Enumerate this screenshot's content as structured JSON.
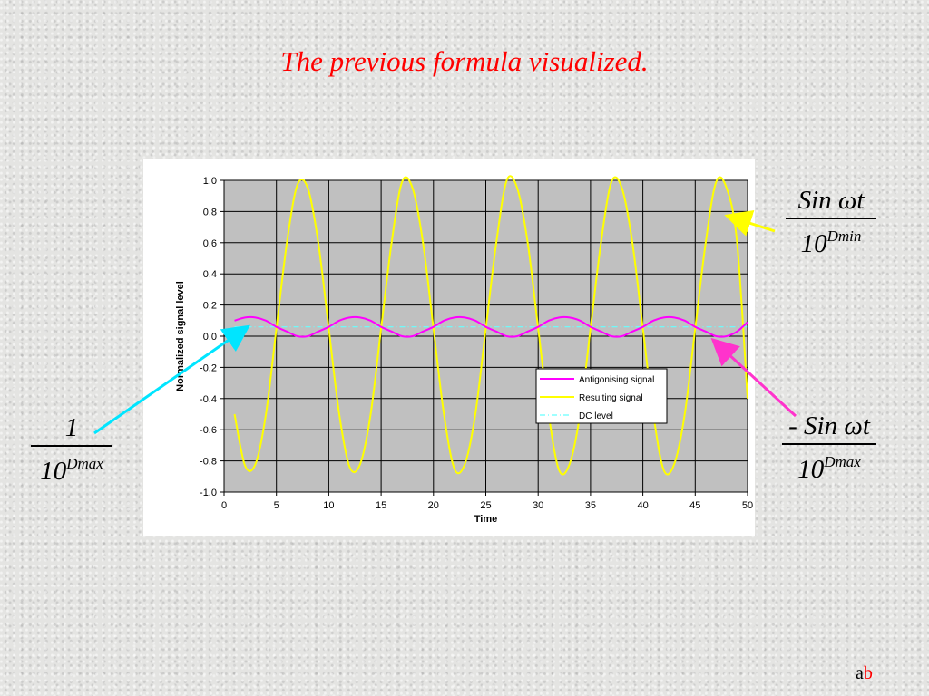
{
  "slide": {
    "title": "The previous formula visualized.",
    "footer_a": "a",
    "footer_b": "b"
  },
  "formulas": {
    "left": {
      "numerator": "1",
      "denominator_base": "10",
      "denominator_exp": "Dmax"
    },
    "top_right": {
      "numerator": "Sin ωt",
      "denominator_base": "10",
      "denominator_exp": "Dmin"
    },
    "bottom_right": {
      "numerator": "- Sin ωt",
      "denominator_base": "10",
      "denominator_exp": "Dmax"
    }
  },
  "colors": {
    "title": "#ff0000",
    "antigonising": "#ff00ff",
    "resulting": "#ffff00",
    "dc": "#66ffff",
    "plot_bg": "#c0c0c0",
    "arrow_cyan": "#00e5ff",
    "arrow_yellow": "#ffff00",
    "arrow_magenta": "#ff33cc",
    "footer_a": "#000000",
    "footer_b": "#ff0000"
  },
  "chart_data": {
    "type": "line",
    "xlabel": "Time",
    "ylabel": "Normalized signal level",
    "xlim": [
      0,
      50
    ],
    "ylim": [
      -1.0,
      1.0
    ],
    "x_ticks": [
      "0",
      "5",
      "10",
      "15",
      "20",
      "25",
      "30",
      "35",
      "40",
      "45",
      "50"
    ],
    "y_ticks": [
      "1.0",
      "0.8",
      "0.6",
      "0.4",
      "0.2",
      "0.0",
      "-0.2",
      "-0.4",
      "-0.6",
      "-0.8",
      "-1.0"
    ],
    "grid": true,
    "legend_position": "bottom-right inside plot",
    "series": [
      {
        "name": "Antigonising signal",
        "style": "solid",
        "color": "#ff00ff",
        "x": [
          1,
          2,
          3,
          4,
          5,
          6,
          7,
          8,
          9,
          10,
          11,
          12,
          13,
          14,
          15,
          16,
          17,
          18,
          19,
          20,
          21,
          22,
          23,
          24,
          25,
          26,
          27,
          28,
          29,
          30,
          31,
          32,
          33,
          34,
          35,
          36,
          37,
          38,
          39,
          40,
          41,
          42,
          43,
          44,
          45,
          46,
          47,
          48,
          49,
          50
        ],
        "y": [
          0.1,
          0.12,
          0.12,
          0.1,
          0.06,
          0.03,
          0.0,
          0.0,
          0.03,
          0.06,
          0.1,
          0.12,
          0.12,
          0.1,
          0.06,
          0.03,
          0.0,
          0.0,
          0.03,
          0.06,
          0.1,
          0.12,
          0.12,
          0.1,
          0.06,
          0.03,
          0.0,
          0.0,
          0.03,
          0.06,
          0.1,
          0.12,
          0.12,
          0.1,
          0.06,
          0.03,
          0.0,
          0.0,
          0.03,
          0.06,
          0.1,
          0.12,
          0.12,
          0.1,
          0.06,
          0.03,
          0.0,
          0.0,
          0.03,
          0.09
        ]
      },
      {
        "name": "Resulting signal",
        "style": "solid",
        "color": "#ffff00",
        "x": [
          1,
          2,
          3,
          4,
          5,
          6,
          7,
          8,
          9,
          10,
          11,
          12,
          13,
          14,
          15,
          16,
          17,
          18,
          19,
          20,
          21,
          22,
          23,
          24,
          25,
          26,
          27,
          28,
          29,
          30,
          31,
          32,
          33,
          34,
          35,
          36,
          37,
          38,
          39,
          40,
          41,
          42,
          43,
          44,
          45,
          46,
          47,
          48,
          49,
          50
        ],
        "y": [
          -0.5,
          -0.83,
          -0.82,
          -0.5,
          0.05,
          0.6,
          0.97,
          0.95,
          0.6,
          0.05,
          -0.5,
          -0.84,
          -0.82,
          -0.5,
          0.05,
          0.6,
          0.99,
          0.95,
          0.6,
          0.05,
          -0.5,
          -0.85,
          -0.82,
          -0.5,
          0.05,
          0.6,
          1.0,
          0.95,
          0.6,
          0.05,
          -0.5,
          -0.86,
          -0.82,
          -0.5,
          0.05,
          0.6,
          0.99,
          0.95,
          0.6,
          0.05,
          -0.5,
          -0.86,
          -0.82,
          -0.5,
          0.05,
          0.6,
          0.99,
          0.95,
          0.6,
          -0.4
        ]
      },
      {
        "name": "DC level",
        "style": "dash-dot",
        "color": "#66ffff",
        "x": [
          1,
          50
        ],
        "y": [
          0.06,
          0.06
        ]
      }
    ]
  }
}
